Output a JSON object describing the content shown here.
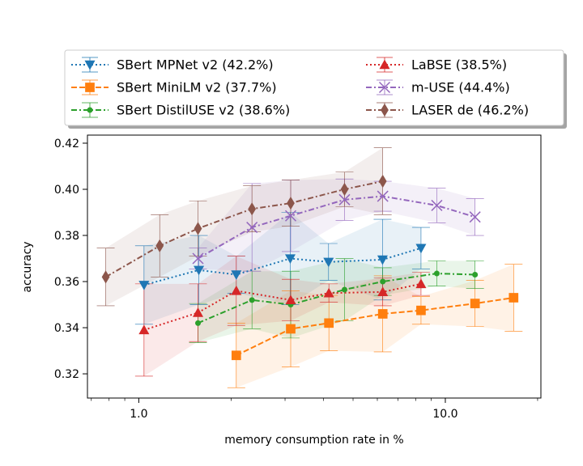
{
  "chart_data": {
    "type": "line",
    "title": "",
    "xlabel": "memory consumption rate in %",
    "ylabel": "accuracy",
    "xscale": "log",
    "xlim": [
      0.68,
      20.5
    ],
    "ylim": [
      0.3095,
      0.4235
    ],
    "xticks": [
      {
        "value": 1.0,
        "label": "1.0"
      },
      {
        "value": 10.0,
        "label": "10.0"
      }
    ],
    "yticks": [
      {
        "value": 0.32,
        "label": "0.32"
      },
      {
        "value": 0.34,
        "label": "0.34"
      },
      {
        "value": 0.36,
        "label": "0.36"
      },
      {
        "value": 0.38,
        "label": "0.38"
      },
      {
        "value": 0.4,
        "label": "0.40"
      },
      {
        "value": 0.42,
        "label": "0.42"
      }
    ],
    "legend_position": "top",
    "series": [
      {
        "name": "SBert MPNet v2 (42.2%)",
        "color": "#1f77b4",
        "marker": "triangle-down",
        "line": "dotted",
        "x": [
          1.04,
          1.57,
          2.08,
          3.12,
          4.16,
          6.24,
          8.33
        ],
        "values": [
          0.3585,
          0.365,
          0.363,
          0.37,
          0.3685,
          0.3695,
          0.3745
        ],
        "err": [
          0.017,
          0.015,
          0.008,
          0.02,
          0.008,
          0.0175,
          0.009
        ]
      },
      {
        "name": "SBert MiniLM v2 (37.7%)",
        "color": "#ff7f0e",
        "marker": "square",
        "line": "dashed",
        "x": [
          2.08,
          3.13,
          4.17,
          6.25,
          8.33,
          12.5,
          16.7
        ],
        "values": [
          0.328,
          0.3395,
          0.342,
          0.346,
          0.3475,
          0.3505,
          0.353
        ],
        "err": [
          0.014,
          0.0165,
          0.012,
          0.0165,
          0.006,
          0.01,
          0.0145
        ]
      },
      {
        "name": "SBert DistilUSE v2 (38.6%)",
        "color": "#2ca02c",
        "marker": "point",
        "line": "dashdot",
        "x": [
          1.56,
          2.34,
          3.13,
          4.69,
          6.25,
          9.38,
          12.5
        ],
        "values": [
          0.342,
          0.352,
          0.35,
          0.3565,
          0.36,
          0.3635,
          0.363
        ],
        "err": [
          0.0085,
          0.0125,
          0.0145,
          0.0135,
          0.006,
          0.0055,
          0.006
        ]
      },
      {
        "name": "LaBSE (38.5%)",
        "color": "#d62728",
        "marker": "triangle-up",
        "line": "dotted",
        "x": [
          1.04,
          1.56,
          2.08,
          3.13,
          4.17,
          6.25,
          8.33
        ],
        "values": [
          0.339,
          0.3465,
          0.356,
          0.352,
          0.355,
          0.3555,
          0.359
        ],
        "err": [
          0.02,
          0.0125,
          0.015,
          0.009,
          0.004,
          0.006,
          0.005
        ]
      },
      {
        "name": "m-USE (44.4%)",
        "color": "#9467bd",
        "marker": "x",
        "line": "dashdot",
        "x": [
          1.56,
          2.34,
          3.13,
          4.69,
          6.25,
          9.38,
          12.5
        ],
        "values": [
          0.37,
          0.3835,
          0.3885,
          0.3955,
          0.397,
          0.393,
          0.388
        ],
        "err": [
          0.0045,
          0.019,
          0.0155,
          0.009,
          0.0065,
          0.0075,
          0.008
        ]
      },
      {
        "name": "LASER de (46.2%)",
        "color": "#8c564b",
        "marker": "diamond",
        "line": "dashdot",
        "x": [
          0.78,
          1.17,
          1.56,
          2.34,
          3.13,
          4.69,
          6.25
        ],
        "values": [
          0.362,
          0.3755,
          0.383,
          0.3915,
          0.394,
          0.4,
          0.4035
        ],
        "err": [
          0.0125,
          0.0135,
          0.012,
          0.01,
          0.01,
          0.0075,
          0.0145
        ]
      }
    ]
  }
}
